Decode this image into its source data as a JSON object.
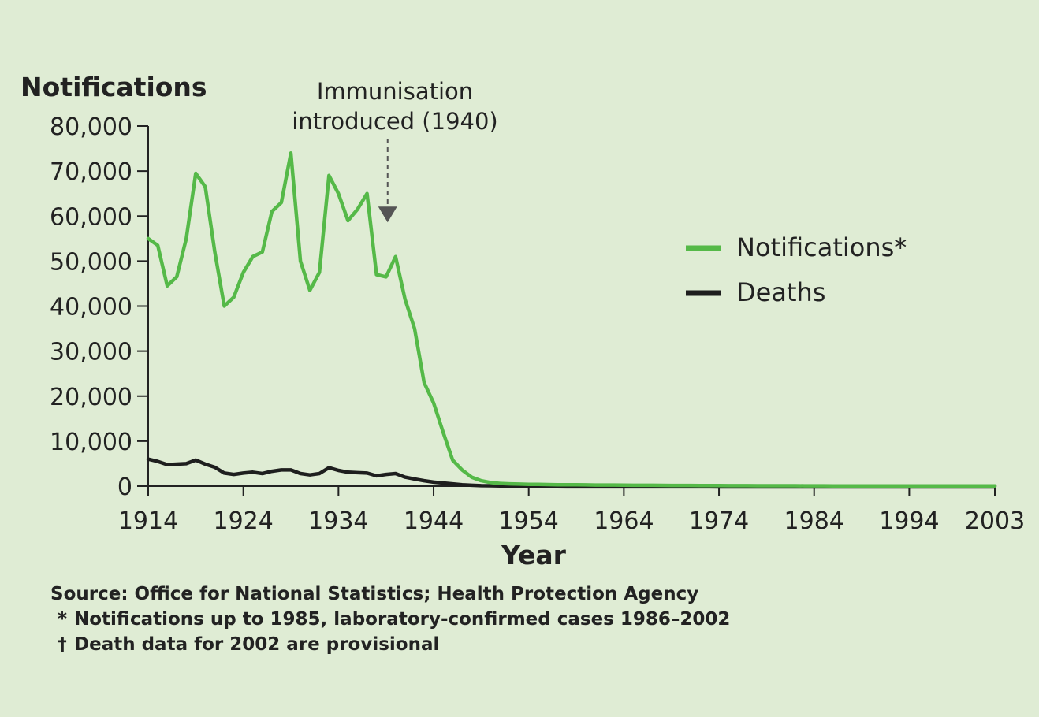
{
  "chart_data": {
    "type": "line",
    "ylabel": "Notifications",
    "xlabel": "Year",
    "ylim": [
      0,
      80000
    ],
    "xlim": [
      1914,
      2003
    ],
    "yticks": [
      0,
      10000,
      20000,
      30000,
      40000,
      50000,
      60000,
      70000,
      80000
    ],
    "ytick_labels": [
      "0",
      "10,000",
      "20,000",
      "30,000",
      "40,000",
      "50,000",
      "60,000",
      "70,000",
      "80,000"
    ],
    "xticks": [
      1914,
      1924,
      1934,
      1944,
      1954,
      1964,
      1974,
      1984,
      1994,
      2003
    ],
    "xtick_labels": [
      "1914",
      "1924",
      "1934",
      "1944",
      "1954",
      "1964",
      "1974",
      "1984",
      "1994",
      "2003"
    ],
    "annotation": {
      "line1": "Immunisation",
      "line2": "introduced (1940)",
      "x": 1940,
      "y": 60000
    },
    "legend_position": "right",
    "series": [
      {
        "name": "Notifications*",
        "color": "#55b948",
        "x": [
          1914,
          1915,
          1916,
          1917,
          1918,
          1919,
          1920,
          1921,
          1922,
          1923,
          1924,
          1925,
          1926,
          1927,
          1928,
          1929,
          1930,
          1931,
          1932,
          1933,
          1934,
          1935,
          1936,
          1937,
          1938,
          1939,
          1940,
          1941,
          1942,
          1943,
          1944,
          1945,
          1946,
          1947,
          1948,
          1949,
          1950,
          1951,
          1952,
          1953,
          1954,
          1955,
          1956,
          1957,
          1958,
          1959,
          1960,
          1961,
          1962,
          1963,
          1964,
          1965,
          1966,
          1967,
          1968,
          1969,
          1970,
          1971,
          1972,
          1973,
          1974,
          1975,
          1976,
          1977,
          1978,
          1979,
          1980,
          1981,
          1982,
          1983,
          1984,
          1985,
          1986,
          1987,
          1988,
          1989,
          1990,
          1991,
          1992,
          1993,
          1994,
          1995,
          1996,
          1997,
          1998,
          1999,
          2000,
          2001,
          2002,
          2003
        ],
        "values": [
          55000,
          53500,
          44500,
          46500,
          55000,
          69500,
          66500,
          52000,
          40000,
          42000,
          47500,
          51000,
          52000,
          61000,
          63000,
          74000,
          50000,
          43500,
          47500,
          69000,
          65000,
          59000,
          61500,
          65000,
          47000,
          46500,
          51000,
          41500,
          35000,
          23000,
          18500,
          12000,
          5800,
          3600,
          2000,
          1200,
          800,
          600,
          500,
          450,
          400,
          400,
          350,
          300,
          300,
          300,
          280,
          250,
          250,
          250,
          220,
          200,
          200,
          200,
          180,
          160,
          160,
          150,
          140,
          130,
          120,
          110,
          100,
          100,
          90,
          90,
          80,
          80,
          80,
          70,
          70,
          70,
          60,
          60,
          60,
          60,
          60,
          55,
          55,
          55,
          50,
          50,
          50,
          50,
          50,
          50,
          50,
          50,
          50,
          50
        ]
      },
      {
        "name": "Deaths",
        "color": "#1e1e1e",
        "x": [
          1914,
          1915,
          1916,
          1917,
          1918,
          1919,
          1920,
          1921,
          1922,
          1923,
          1924,
          1925,
          1926,
          1927,
          1928,
          1929,
          1930,
          1931,
          1932,
          1933,
          1934,
          1935,
          1936,
          1937,
          1938,
          1939,
          1940,
          1941,
          1942,
          1943,
          1944,
          1945,
          1946,
          1947,
          1948,
          1949,
          1950,
          1951,
          1952,
          1953,
          1954,
          1955,
          1956,
          1957,
          1958,
          1959,
          1960,
          1961,
          1962,
          1963,
          1964,
          1965,
          1966,
          1967,
          1968,
          1969,
          1970,
          1971,
          1972,
          1973,
          1974,
          1975,
          1976,
          1977,
          1978,
          1979,
          1980,
          1981,
          1982,
          1983,
          1984,
          1985,
          1986,
          1987,
          1988,
          1989,
          1990,
          1991,
          1992,
          1993,
          1994,
          1995,
          1996,
          1997,
          1998,
          1999,
          2000,
          2001,
          2002,
          2003
        ],
        "values": [
          6000,
          5500,
          4800,
          4900,
          5000,
          5800,
          4900,
          4200,
          2900,
          2600,
          2900,
          3100,
          2800,
          3300,
          3600,
          3600,
          2800,
          2500,
          2800,
          4100,
          3500,
          3100,
          3000,
          2900,
          2300,
          2600,
          2800,
          2000,
          1600,
          1200,
          900,
          700,
          500,
          300,
          200,
          100,
          80,
          60,
          50,
          40,
          40,
          30,
          30,
          30,
          20,
          20,
          20,
          20,
          15,
          15,
          10,
          10,
          10,
          10,
          10,
          10,
          10,
          10,
          10,
          10,
          5,
          5,
          5,
          5,
          5,
          5,
          5,
          5,
          5,
          5,
          5,
          5,
          5,
          5,
          5,
          5,
          5,
          5,
          5,
          5,
          5,
          5,
          5,
          5,
          5,
          5,
          5,
          5,
          5,
          5
        ]
      }
    ]
  },
  "notes": {
    "source": "Source: Office for National Statistics; Health Protection Agency",
    "star_symbol": "*",
    "star_text": "Notifications up to 1985, laboratory-confirmed cases 1986–2002",
    "dagger_symbol": "†",
    "dagger_text": "Death data for 2002 are provisional"
  }
}
